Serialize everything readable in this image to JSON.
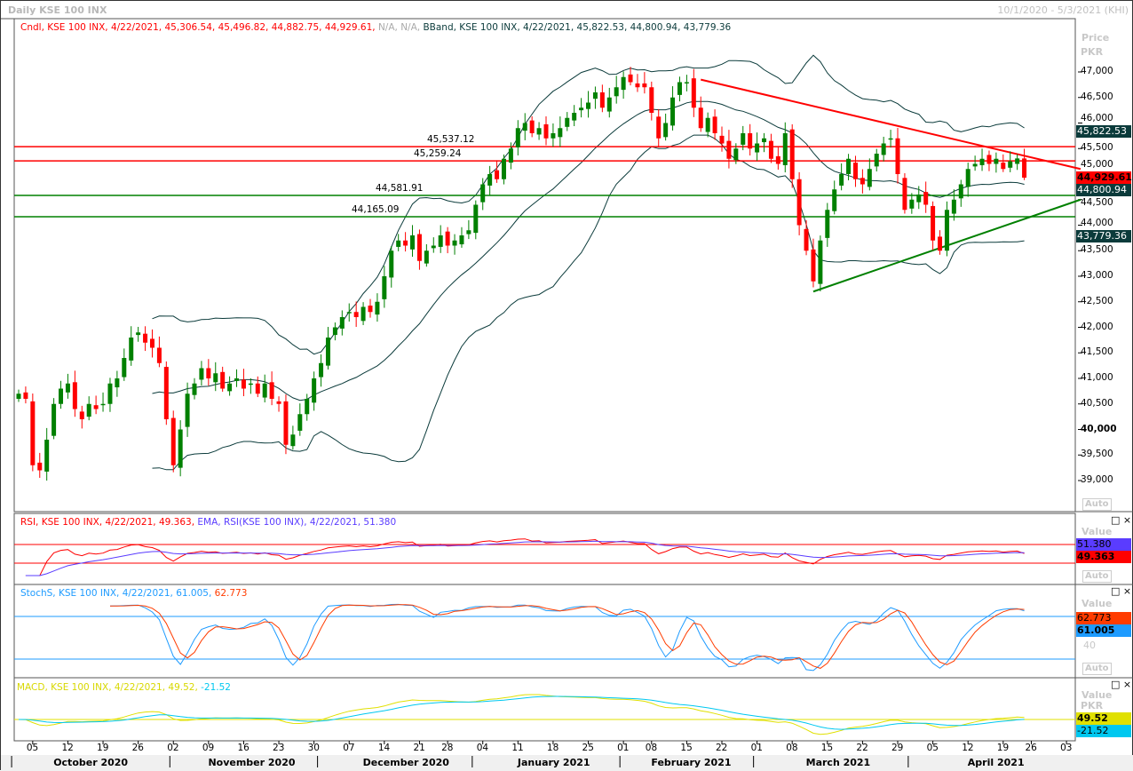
{
  "header": {
    "title": "Daily KSE 100 INX",
    "range": "10/1/2020 - 5/3/2021 (KHI)"
  },
  "legends": {
    "candle": "Cndl, KSE 100 INX, 4/22/2021, 45,306.54, 45,496.82, 44,882.75, 44,929.61,",
    "na": "N/A, N/A,",
    "bband": "BBand, KSE 100 INX, 4/22/2021, 45,822.53, 44,800.94, 43,779.36",
    "rsi": "RSI, KSE 100 INX, 4/22/2021, 49.363,",
    "ema": "EMA, RSI(KSE 100 INX), 4/22/2021, 51.380",
    "stoch_a": "StochS, KSE 100 INX, 4/22/2021, 61.005,",
    "stoch_b": "62.773",
    "macd_a": "MACD, KSE 100 INX, 4/22/2021, 49.52,",
    "macd_b": "-21.52"
  },
  "axis": {
    "price_title": "Price",
    "price_unit": "PKR",
    "value_title": "Value",
    "auto": "Auto",
    "stoch_tick": "40",
    "macd_unit": "PKR"
  },
  "value_boxes": {
    "bb_upper": "45,822.53",
    "last": "44,929.61",
    "bb_mid": "44,800.94",
    "bb_lower": "43,779.36",
    "ema": "51.380",
    "rsi": "49.363",
    "stoch_d": "62.773",
    "stoch_k": "61.005",
    "macd": "49.52",
    "signal": "-21.52"
  },
  "colors": {
    "bull": "#008000",
    "bear": "#ff0000",
    "band": "#0b3b3b",
    "rsi": "#ff0000",
    "ema": "#5a3cff",
    "stoch_k": "#1e9bff",
    "stoch_d": "#ff3c00",
    "macd": "#e0e000",
    "signal": "#00c8f0"
  },
  "chart_data": {
    "type": "candlestick",
    "title": "Daily KSE 100 INX",
    "ylabel": "Price PKR",
    "ylim": [
      38500,
      47600
    ],
    "yticks": [
      39000,
      39500,
      40000,
      40500,
      41000,
      41500,
      42000,
      42500,
      43000,
      43500,
      44000,
      44500,
      45000,
      45500,
      46000,
      46500,
      47000
    ],
    "last_bar": {
      "date": "4/22/2021",
      "open": 45306.54,
      "high": 45496.82,
      "low": 44882.75,
      "close": 44929.61
    },
    "closes": [
      40700,
      40600,
      39300,
      39200,
      39800,
      40500,
      40800,
      40900,
      40400,
      40200,
      40500,
      40400,
      40500,
      40900,
      41000,
      41400,
      41800,
      41900,
      41700,
      41600,
      41300,
      40200,
      39300,
      40000,
      40700,
      40900,
      41200,
      41000,
      41100,
      40800,
      40900,
      41000,
      40800,
      40900,
      40700,
      40900,
      40600,
      40500,
      39700,
      39900,
      40300,
      40600,
      41000,
      41300,
      41800,
      42000,
      42200,
      42300,
      42200,
      42400,
      42300,
      42500,
      43000,
      43500,
      43700,
      43600,
      43800,
      43300,
      43500,
      43600,
      43800,
      43600,
      43700,
      43800,
      43900,
      44400,
      44800,
      45000,
      44900,
      45300,
      45500,
      45900,
      46000,
      45800,
      45900,
      45700,
      45800,
      45900,
      46100,
      46200,
      46300,
      46400,
      46600,
      46300,
      46500,
      46700,
      46900,
      46800,
      46700,
      46700,
      46200,
      45700,
      46000,
      46500,
      46800,
      46800,
      46300,
      45900,
      46100,
      45800,
      45600,
      45300,
      45500,
      45800,
      45500,
      45600,
      45700,
      45300,
      45200,
      45800,
      44900,
      44000,
      43500,
      42900,
      43700,
      44300,
      44700,
      45000,
      45300,
      44900,
      44800,
      45100,
      45400,
      45600,
      45700,
      45000,
      44300,
      44500,
      44600,
      44400,
      43700,
      43500,
      44300,
      44500,
      44800,
      45100,
      45200,
      45300,
      45200,
      45300,
      45100,
      45250,
      45306.54,
      44929.61
    ],
    "hlines": [
      {
        "value": 45537.12,
        "label": "45,537.12",
        "color": "red"
      },
      {
        "value": 45259.24,
        "label": "45,259.24",
        "color": "red"
      },
      {
        "value": 44581.91,
        "label": "44,581.91",
        "color": "green"
      },
      {
        "value": 44165.09,
        "label": "44,165.09",
        "color": "green"
      }
    ],
    "trendlines": [
      {
        "from": [
          97,
          46850
        ],
        "to": [
          151,
          45100
        ],
        "color": "red"
      },
      {
        "from": [
          113,
          42700
        ],
        "to": [
          151,
          44500
        ],
        "color": "green"
      }
    ],
    "indicators": {
      "bollinger": [
        20,
        2
      ],
      "rsi": {
        "period": 14,
        "levels": [
          70,
          30
        ]
      },
      "stoch": {
        "period": 14,
        "levels": [
          80,
          20
        ]
      },
      "macd": [
        12,
        26,
        9
      ]
    },
    "xticks": [
      [
        2,
        "05"
      ],
      [
        7,
        "12"
      ],
      [
        12,
        "19"
      ],
      [
        17,
        "26"
      ],
      [
        22,
        "02"
      ],
      [
        27,
        "09"
      ],
      [
        32,
        "16"
      ],
      [
        37,
        "23"
      ],
      [
        42,
        "30"
      ],
      [
        47,
        "07"
      ],
      [
        52,
        "14"
      ],
      [
        57,
        "21"
      ],
      [
        61,
        "28"
      ],
      [
        66,
        "04"
      ],
      [
        71,
        "11"
      ],
      [
        76,
        "18"
      ],
      [
        81,
        "25"
      ],
      [
        86,
        "01"
      ],
      [
        90,
        "08"
      ],
      [
        95,
        "15"
      ],
      [
        100,
        "22"
      ],
      [
        105,
        "01"
      ],
      [
        110,
        "08"
      ],
      [
        115,
        "15"
      ],
      [
        120,
        "22"
      ],
      [
        125,
        "29"
      ],
      [
        130,
        "05"
      ],
      [
        135,
        "12"
      ],
      [
        140,
        "19"
      ],
      [
        144,
        "26"
      ],
      [
        149,
        "03"
      ]
    ],
    "months": [
      [
        10,
        "October 2020",
        -1
      ],
      [
        32,
        "November 2020",
        21.5
      ],
      [
        54,
        "December 2020",
        42.5
      ],
      [
        76,
        "January 2021",
        64.5
      ],
      [
        95,
        "February 2021",
        85.5
      ],
      [
        117,
        "March 2021",
        104.5
      ],
      [
        140,
        "April 2021",
        126.5
      ]
    ]
  }
}
